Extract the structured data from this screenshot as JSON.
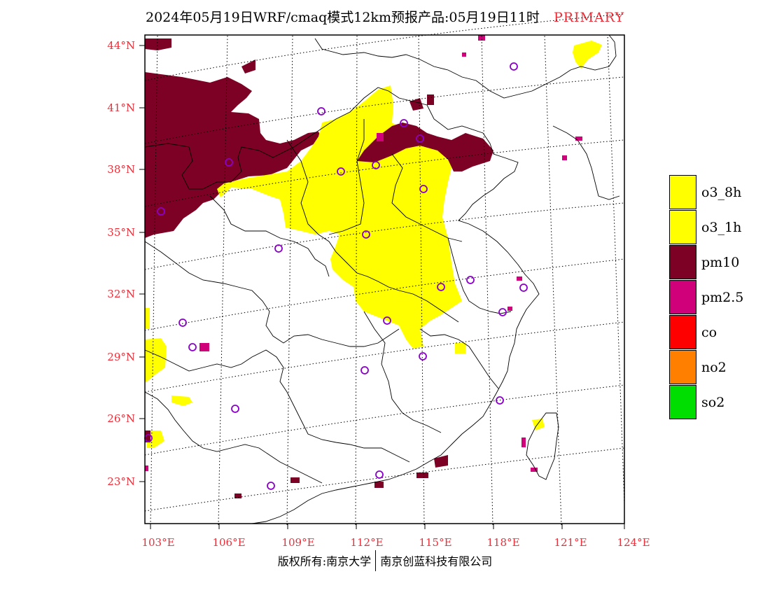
{
  "title": {
    "main": "2024年05月19日WRF/cmaq模式12km预报产品:05月19日11时",
    "tag": "PRIMARY"
  },
  "axes": {
    "lat_labels": [
      "44°N",
      "41°N",
      "38°N",
      "35°N",
      "32°N",
      "29°N",
      "26°N",
      "23°N"
    ],
    "lon_labels": [
      "103°E",
      "106°E",
      "109°E",
      "112°E",
      "115°E",
      "118°E",
      "121°E",
      "124°E"
    ],
    "label_color": "#e8303a"
  },
  "legend": [
    {
      "label": "o3_8h",
      "color": "#ffff00"
    },
    {
      "label": "o3_1h",
      "color": "#ffff00"
    },
    {
      "label": "pm10",
      "color": "#7d0025"
    },
    {
      "label": "pm2.5",
      "color": "#d0007a"
    },
    {
      "label": "co",
      "color": "#ff0000"
    },
    {
      "label": "no2",
      "color": "#ff7f00"
    },
    {
      "label": "so2",
      "color": "#00dd00"
    }
  ],
  "footer": {
    "left": "版权所有:南京大学",
    "right": "南京创蓝科技有限公司"
  },
  "colors": {
    "o3": "#ffff00",
    "pm10": "#7d0025",
    "pm25": "#d0007a",
    "station": "#8a00c8"
  }
}
